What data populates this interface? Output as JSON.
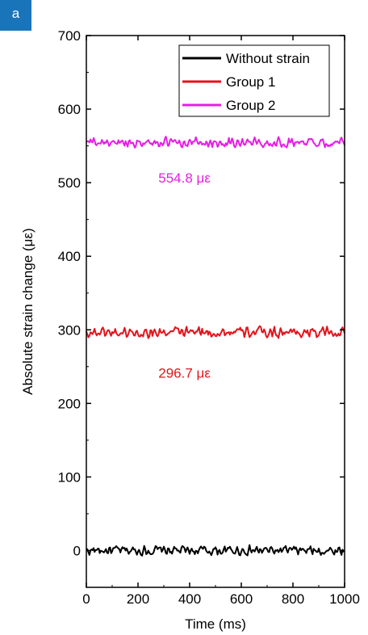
{
  "panel_label": "a",
  "chart_data": {
    "type": "line",
    "xlabel": "Time (ms)",
    "ylabel": "Absolute strain change (με)",
    "xlim": [
      0,
      1000
    ],
    "ylim": [
      -50,
      700
    ],
    "xticks": [
      0,
      200,
      400,
      600,
      800,
      1000
    ],
    "yticks": [
      0,
      100,
      200,
      300,
      400,
      500,
      600,
      700
    ],
    "grid": false,
    "legend_position": "top-right",
    "series": [
      {
        "name": "Without strain",
        "color": "#000000",
        "mean": 0,
        "amplitude": 8
      },
      {
        "name": "Group 1",
        "color": "#e4141b",
        "mean": 296.7,
        "amplitude": 9
      },
      {
        "name": "Group 2",
        "color": "#e61ee6",
        "mean": 554.8,
        "amplitude": 8
      }
    ],
    "annotations": [
      {
        "text": "554.8 με",
        "x": 380,
        "y": 500,
        "color": "#e61ee6"
      },
      {
        "text": "296.7 με",
        "x": 380,
        "y": 235,
        "color": "#e4141b"
      }
    ]
  }
}
